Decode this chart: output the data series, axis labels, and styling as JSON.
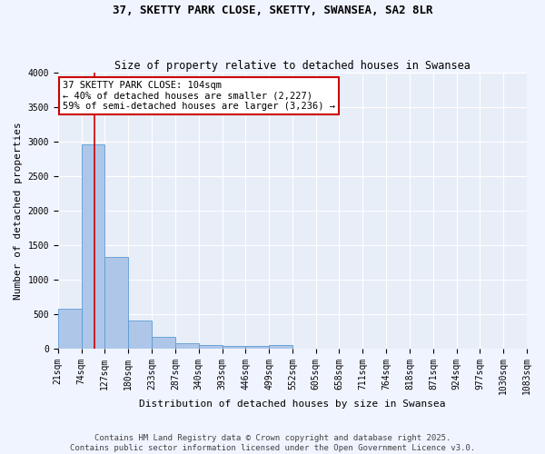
{
  "title": "37, SKETTY PARK CLOSE, SKETTY, SWANSEA, SA2 8LR",
  "subtitle": "Size of property relative to detached houses in Swansea",
  "xlabel": "Distribution of detached houses by size in Swansea",
  "ylabel": "Number of detached properties",
  "bin_edges": [
    21,
    74,
    127,
    180,
    233,
    287,
    340,
    393,
    446,
    499,
    552,
    605,
    658,
    711,
    764,
    818,
    871,
    924,
    977,
    1030,
    1083
  ],
  "bar_heights": [
    580,
    2950,
    1320,
    400,
    160,
    80,
    50,
    30,
    30,
    50,
    0,
    0,
    0,
    0,
    0,
    0,
    0,
    0,
    0,
    0
  ],
  "bar_color": "#aec6e8",
  "bar_edgecolor": "#5b9bd5",
  "property_sqm": 104,
  "red_line_color": "#cc0000",
  "annotation_line1": "37 SKETTY PARK CLOSE: 104sqm",
  "annotation_line2": "← 40% of detached houses are smaller (2,227)",
  "annotation_line3": "59% of semi-detached houses are larger (3,236) →",
  "annotation_box_color": "#ffffff",
  "annotation_box_edgecolor": "#cc0000",
  "ylim": [
    0,
    4000
  ],
  "yticks": [
    0,
    500,
    1000,
    1500,
    2000,
    2500,
    3000,
    3500,
    4000
  ],
  "background_color": "#e8eef8",
  "grid_color": "#ffffff",
  "fig_background": "#f0f4ff",
  "footer_line1": "Contains HM Land Registry data © Crown copyright and database right 2025.",
  "footer_line2": "Contains public sector information licensed under the Open Government Licence v3.0.",
  "title_fontsize": 9,
  "subtitle_fontsize": 8.5,
  "label_fontsize": 8,
  "tick_fontsize": 7,
  "annotation_fontsize": 7.5,
  "footer_fontsize": 6.5
}
